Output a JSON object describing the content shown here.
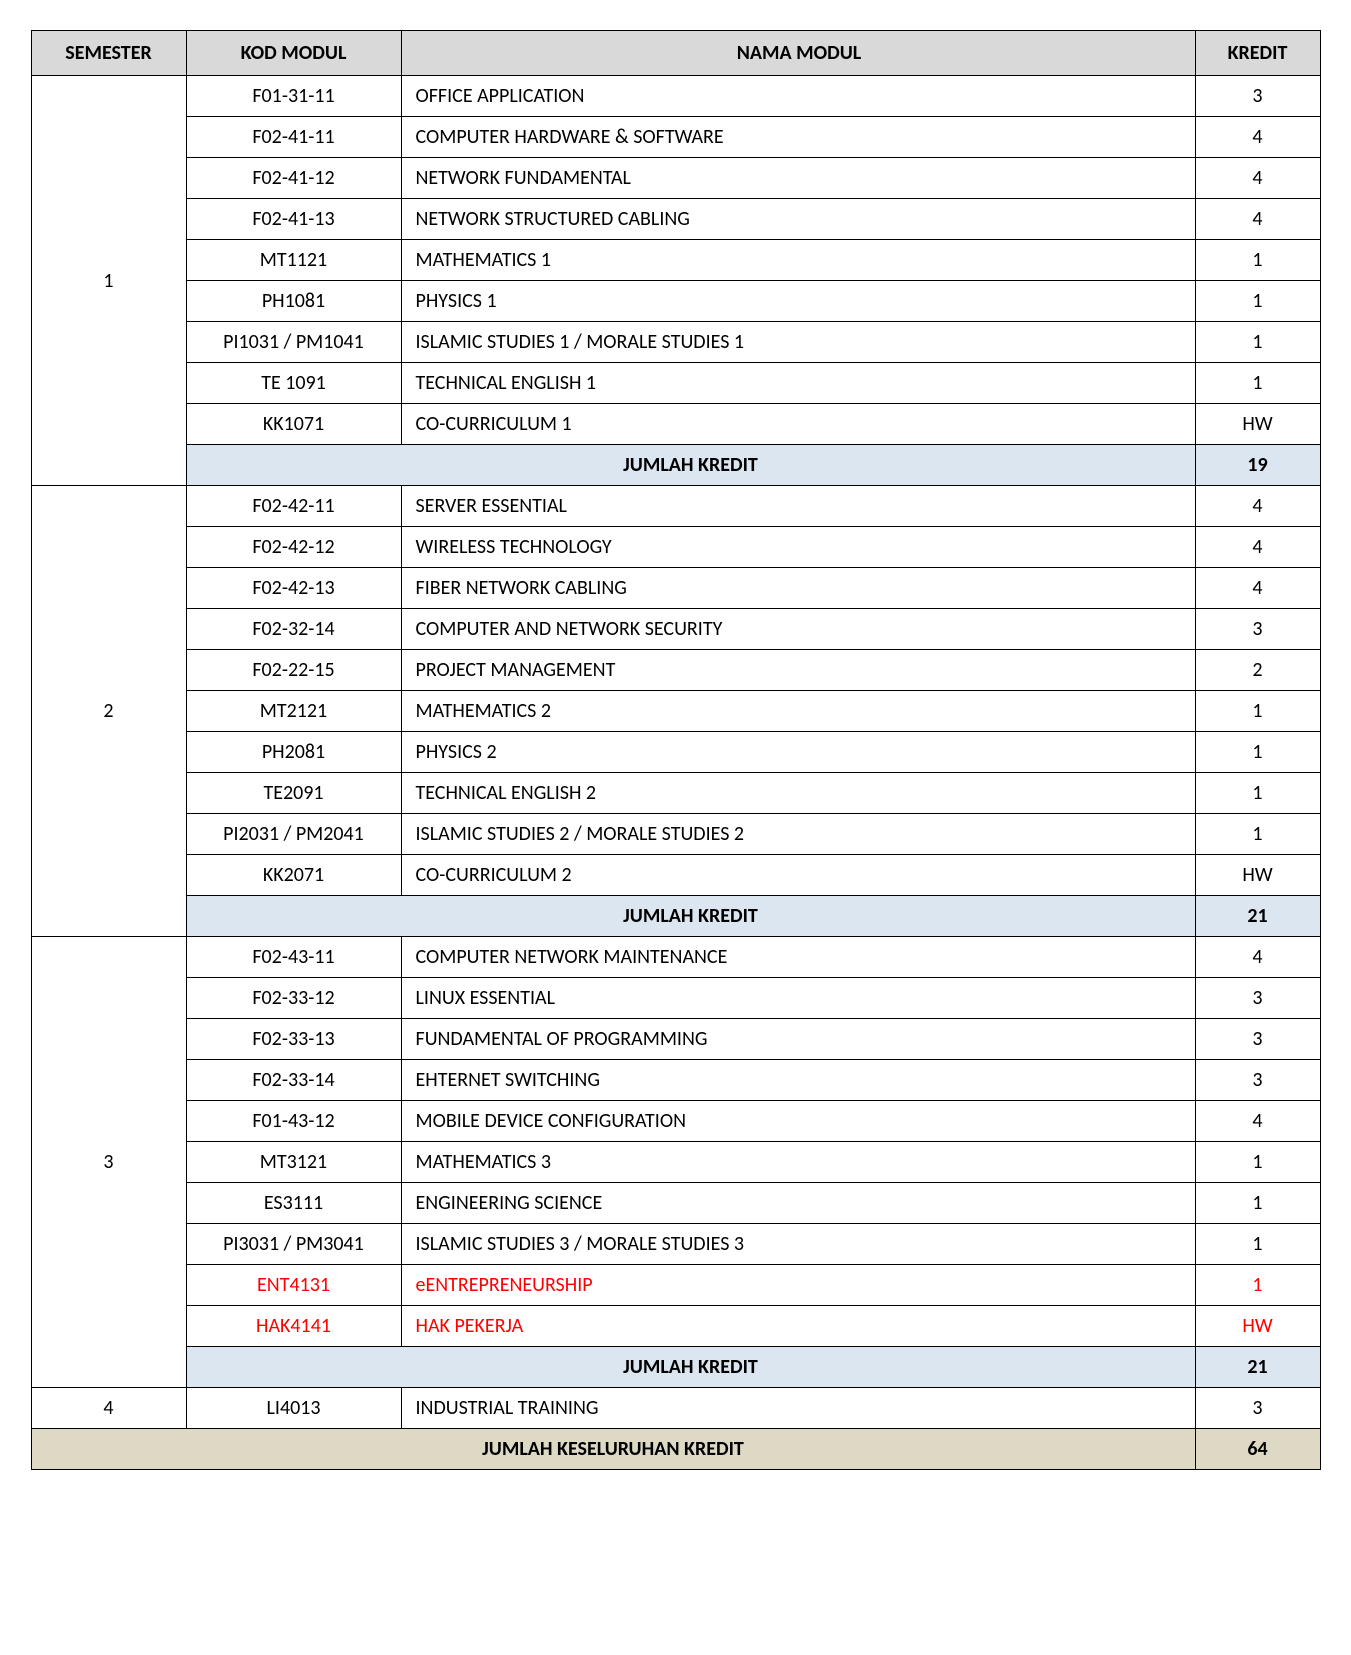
{
  "headers": {
    "semester": "SEMESTER",
    "kod": "KOD MODUL",
    "nama": "NAMA MODUL",
    "kredit": "KREDIT"
  },
  "colors": {
    "header_bg": "#d9d9d9",
    "subtotal_bg": "#dce6f1",
    "grandtotal_bg": "#ddd9c4",
    "border": "#000000",
    "text": "#000000",
    "highlight_text": "#ff0000"
  },
  "subtotal_label": "JUMLAH KREDIT",
  "grandtotal_label": "JUMLAH KESELURUHAN KREDIT",
  "grandtotal_value": "64",
  "semesters": [
    {
      "id": "1",
      "rows": [
        {
          "kod": "F01-31-11",
          "nama": "OFFICE APPLICATION",
          "kredit": "3"
        },
        {
          "kod": "F02-41-11",
          "nama": "COMPUTER HARDWARE & SOFTWARE",
          "kredit": "4"
        },
        {
          "kod": "F02-41-12",
          "nama": "NETWORK FUNDAMENTAL",
          "kredit": "4"
        },
        {
          "kod": "F02-41-13",
          "nama": "NETWORK STRUCTURED CABLING",
          "kredit": "4"
        },
        {
          "kod": "MT1121",
          "nama": "MATHEMATICS 1",
          "kredit": "1"
        },
        {
          "kod": "PH1081",
          "nama": "PHYSICS 1",
          "kredit": "1"
        },
        {
          "kod": "PI1031 / PM1041",
          "nama": "ISLAMIC STUDIES 1 / MORALE STUDIES 1",
          "kredit": "1"
        },
        {
          "kod": "TE 1091",
          "nama": "TECHNICAL ENGLISH 1",
          "kredit": "1"
        },
        {
          "kod": "KK1071",
          "nama": "CO-CURRICULUM 1",
          "kredit": "HW"
        }
      ],
      "subtotal": "19"
    },
    {
      "id": "2",
      "rows": [
        {
          "kod": "F02-42-11",
          "nama": "SERVER ESSENTIAL",
          "kredit": "4"
        },
        {
          "kod": "F02-42-12",
          "nama": "WIRELESS TECHNOLOGY",
          "kredit": "4"
        },
        {
          "kod": "F02-42-13",
          "nama": "FIBER NETWORK CABLING",
          "kredit": "4"
        },
        {
          "kod": "F02-32-14",
          "nama": "COMPUTER AND NETWORK SECURITY",
          "kredit": "3"
        },
        {
          "kod": "F02-22-15",
          "nama": "PROJECT MANAGEMENT",
          "kredit": "2"
        },
        {
          "kod": "MT2121",
          "nama": "MATHEMATICS 2",
          "kredit": "1"
        },
        {
          "kod": "PH2081",
          "nama": "PHYSICS 2",
          "kredit": "1"
        },
        {
          "kod": "TE2091",
          "nama": "TECHNICAL ENGLISH 2",
          "kredit": "1"
        },
        {
          "kod": "PI2031 / PM2041",
          "nama": "ISLAMIC STUDIES 2 / MORALE STUDIES 2",
          "kredit": "1"
        },
        {
          "kod": "KK2071",
          "nama": "CO-CURRICULUM 2",
          "kredit": "HW"
        }
      ],
      "subtotal": "21"
    },
    {
      "id": "3",
      "rows": [
        {
          "kod": "F02-43-11",
          "nama": "COMPUTER NETWORK MAINTENANCE",
          "kredit": "4"
        },
        {
          "kod": "F02-33-12",
          "nama": "LINUX ESSENTIAL",
          "kredit": "3"
        },
        {
          "kod": "F02-33-13",
          "nama": "FUNDAMENTAL OF PROGRAMMING",
          "kredit": "3"
        },
        {
          "kod": "F02-33-14",
          "nama": "EHTERNET SWITCHING",
          "kredit": "3"
        },
        {
          "kod": "F01-43-12",
          "nama": "MOBILE DEVICE CONFIGURATION",
          "kredit": "4"
        },
        {
          "kod": "MT3121",
          "nama": "MATHEMATICS 3",
          "kredit": "1"
        },
        {
          "kod": "ES3111",
          "nama": "ENGINEERING SCIENCE",
          "kredit": "1"
        },
        {
          "kod": "PI3031 / PM3041",
          "nama": "ISLAMIC STUDIES 3 / MORALE STUDIES 3",
          "kredit": "1"
        },
        {
          "kod": "ENT4131",
          "nama": "eENTREPRENEURSHIP",
          "kredit": "1",
          "highlight": true
        },
        {
          "kod": "HAK4141",
          "nama": "HAK PEKERJA",
          "kredit": "HW",
          "highlight": true
        }
      ],
      "subtotal": "21"
    },
    {
      "id": "4",
      "rows": [
        {
          "kod": "LI4013",
          "nama": "INDUSTRIAL TRAINING",
          "kredit": "3"
        }
      ],
      "subtotal": null
    }
  ]
}
